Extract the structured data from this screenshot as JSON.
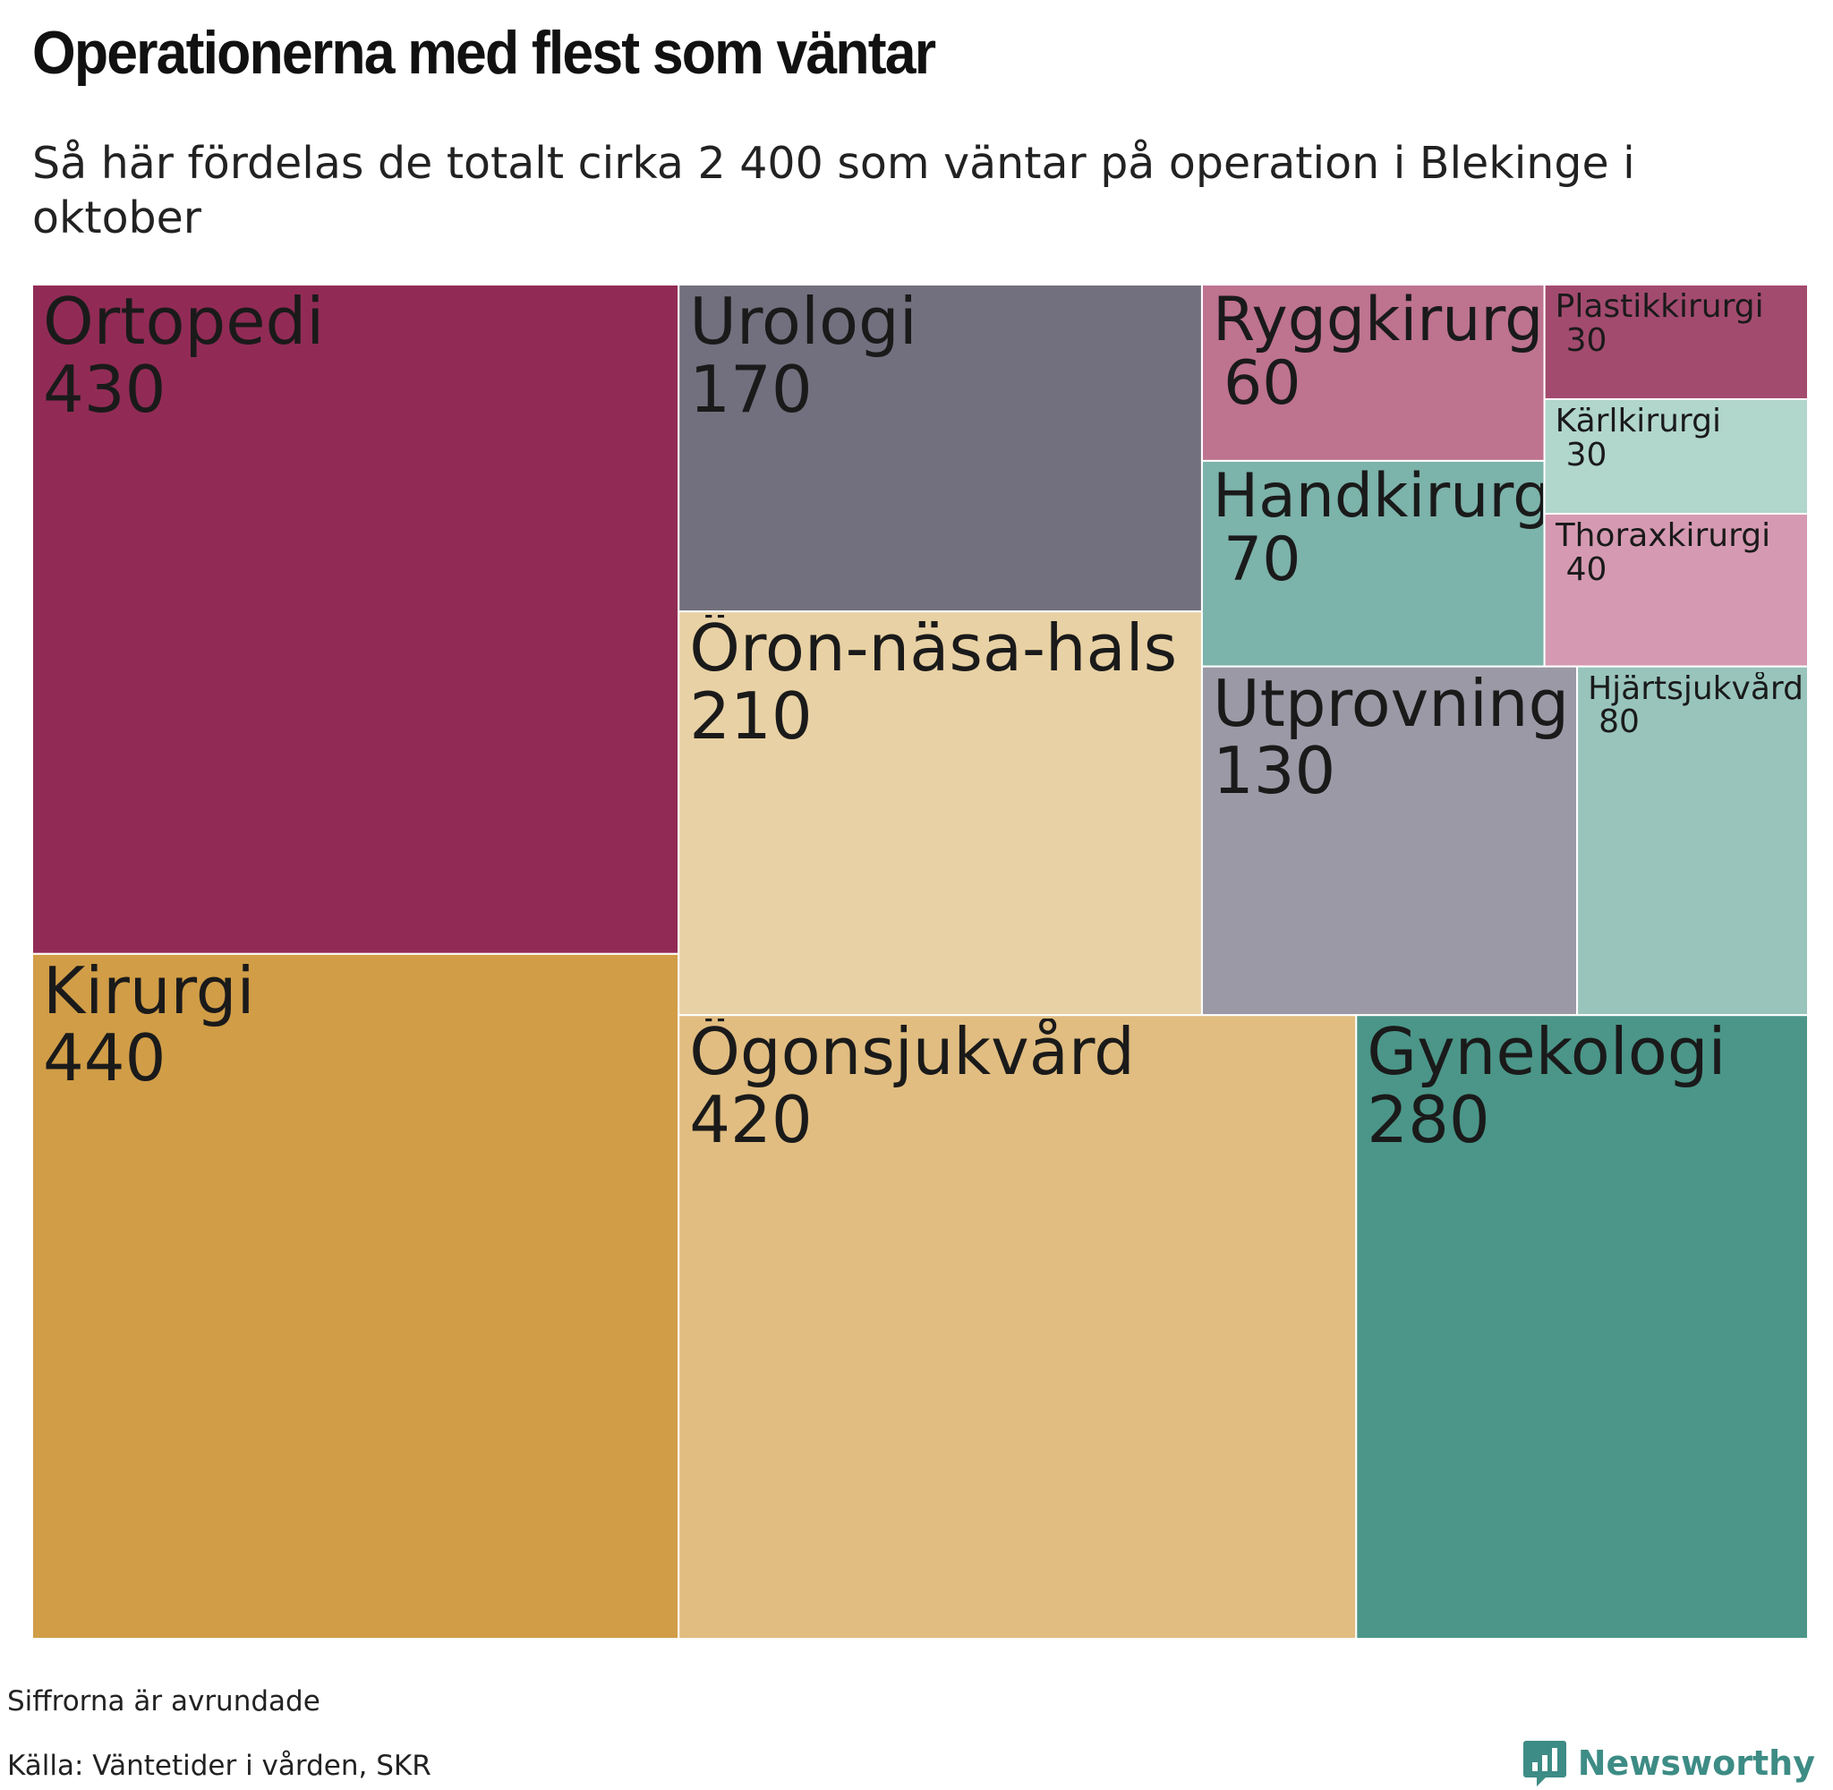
{
  "header": {
    "title": "Operationerna med flest som väntar",
    "subtitle": "Så här fördelas de totalt cirka 2 400 som väntar på operation i Blekinge i oktober"
  },
  "chart_data": {
    "type": "treemap",
    "title": "Operationerna med flest som väntar",
    "subtitle": "Så här fördelas de totalt cirka 2 400 som väntar på operation i Blekinge i oktober",
    "categories": [
      "Kirurgi",
      "Ortopedi",
      "Ögonsjukvård",
      "Gynekologi",
      "Öron-näsa-hals",
      "Urologi",
      "Utprovning av hörapparat",
      "Hjärtsjukvård",
      "Handkirurgi",
      "Ryggkirurgi",
      "Thoraxkirurgi",
      "Plastikkirurgi",
      "Kärlkirurgi"
    ],
    "values": [
      440,
      430,
      420,
      280,
      210,
      170,
      130,
      80,
      70,
      60,
      40,
      30,
      30
    ],
    "value_labels": [
      "440",
      "430",
      "420",
      "280",
      "210",
      "170",
      "130",
      "80",
      "70",
      "60",
      "40",
      "30",
      "30"
    ],
    "colors": {
      "Ortopedi": "#912b55",
      "Kirurgi": "#d19d47",
      "Urologi": "#72707e",
      "Öron-näsa-hals": "#e8d1a4",
      "Ögonsjukvård": "#e1bd81",
      "Gynekologi": "#4b9689",
      "Ryggkirurgi": "#be738f",
      "Handkirurgi": "#7cb3ab",
      "Plastikkirurgi": "#a34b6f",
      "Kärlkirurgi": "#b1d6cc",
      "Thoraxkirurgi": "#d59ab1",
      "Utprovning av hörapparat": "#9c99a6",
      "Hjärtsjukvård": "#98c4bc"
    }
  },
  "footer": {
    "note": "Siffrorna är avrundade",
    "source": "Källa: Väntetider i vården, SKR",
    "brand": "Newsworthy",
    "brand_icon": "newsworthy-logo-icon"
  }
}
